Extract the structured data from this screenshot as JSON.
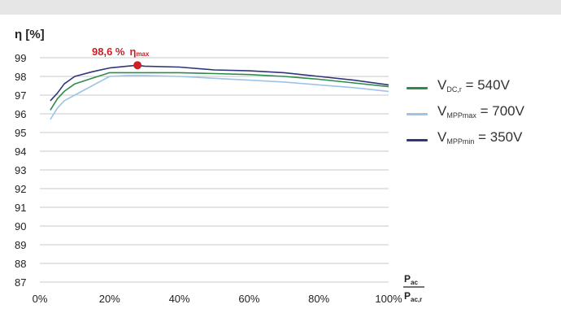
{
  "chart_data": {
    "type": "line",
    "ylabel": "η [%]",
    "xlabel_numerator": "P",
    "xlabel_numerator_sub": "ac",
    "xlabel_denominator": "P",
    "xlabel_denominator_sub": "ac,r",
    "xlim": [
      0,
      100
    ],
    "ylim": [
      87,
      99
    ],
    "x_ticks": [
      "0%",
      "20%",
      "40%",
      "60%",
      "80%",
      "100%"
    ],
    "x_tick_values": [
      0,
      20,
      40,
      60,
      80,
      100
    ],
    "y_ticks": [
      87,
      88,
      89,
      90,
      91,
      92,
      93,
      94,
      95,
      96,
      97,
      98,
      99
    ],
    "grid": true,
    "legend_position": "right",
    "annotation": {
      "value_text": "98,6 %",
      "symbol_text": "η",
      "symbol_sub": "max",
      "x": 28,
      "y": 98.6,
      "color": "#cc1f26"
    },
    "series": [
      {
        "label_main": "V",
        "label_sub": "DC,r",
        "label_value": " = 540V",
        "color": "#2e8b4a",
        "x": [
          3,
          5,
          7,
          10,
          15,
          20,
          25,
          30,
          40,
          50,
          60,
          70,
          80,
          90,
          100
        ],
        "y": [
          96.2,
          96.8,
          97.2,
          97.6,
          97.9,
          98.2,
          98.2,
          98.2,
          98.2,
          98.15,
          98.1,
          98.0,
          97.85,
          97.65,
          97.45
        ]
      },
      {
        "label_main": "V",
        "label_sub": "MPPmax",
        "label_value": " = 700V",
        "color": "#9cc4e8",
        "x": [
          3,
          5,
          7,
          10,
          15,
          20,
          25,
          30,
          40,
          50,
          60,
          70,
          80,
          90,
          100
        ],
        "y": [
          95.7,
          96.3,
          96.7,
          97.0,
          97.5,
          98.0,
          98.05,
          98.05,
          98.0,
          97.9,
          97.8,
          97.7,
          97.55,
          97.4,
          97.2
        ]
      },
      {
        "label_main": "V",
        "label_sub": "MPPmin",
        "label_value": " = 350V",
        "color": "#2f3679",
        "x": [
          3,
          5,
          7,
          10,
          15,
          20,
          25,
          28,
          30,
          40,
          50,
          60,
          70,
          80,
          90,
          100
        ],
        "y": [
          96.7,
          97.1,
          97.6,
          98.0,
          98.25,
          98.45,
          98.55,
          98.6,
          98.55,
          98.5,
          98.35,
          98.3,
          98.2,
          98.0,
          97.8,
          97.55
        ]
      }
    ]
  }
}
